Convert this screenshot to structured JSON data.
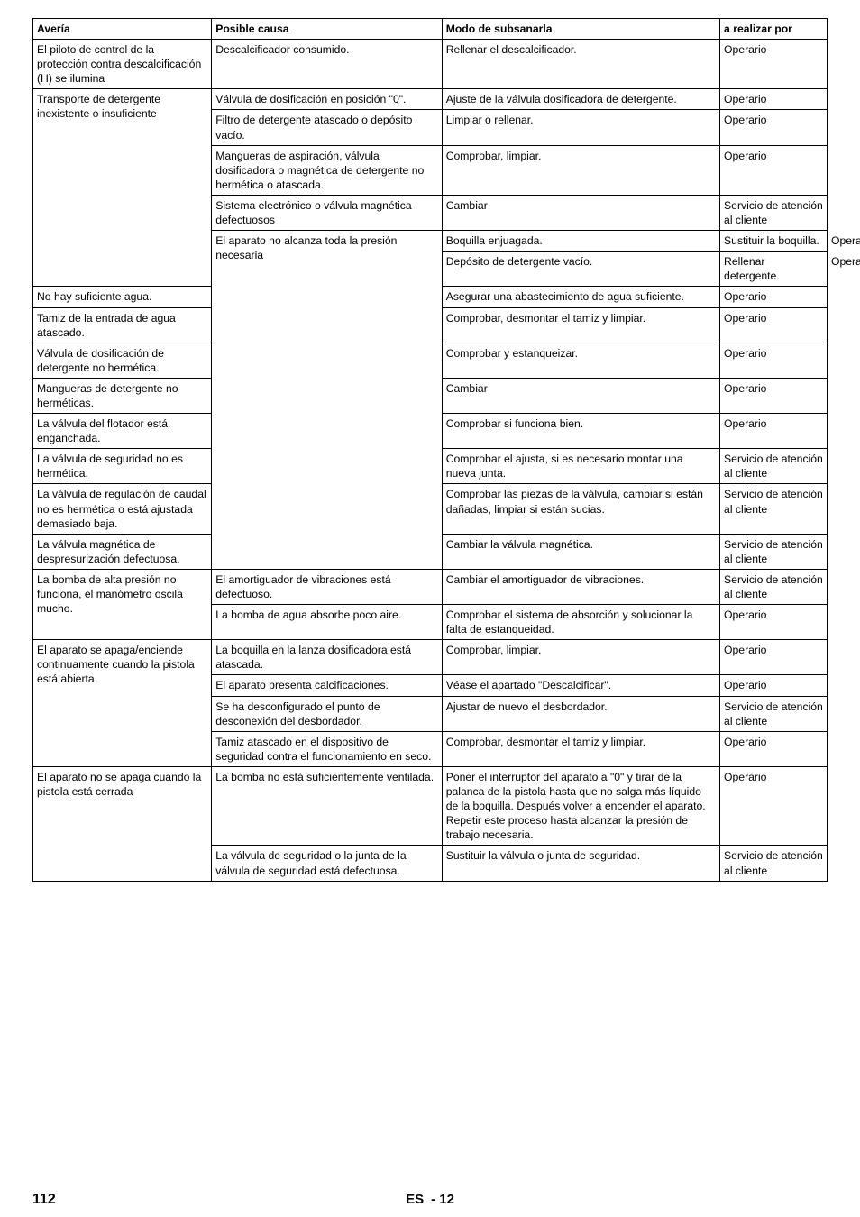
{
  "table": {
    "headers": [
      "Avería",
      "Posible causa",
      "Modo de subsanarla",
      "a realizar por"
    ],
    "rows": [
      {
        "averia": "El piloto de control de la protección contra descalcificación (H) se ilumina",
        "causa": "Descalcificador consumido.",
        "modo": "Rellenar el descalcificador.",
        "realizar": "Operario",
        "rs_a": 1
      },
      {
        "causa": "Válvula de dosificación en posición \"0\".",
        "modo": "Ajuste de la válvula dosificadora de detergente.",
        "realizar": "Operario",
        "rs_a": 6,
        "averia": "Transporte de detergente inexistente o insuficiente"
      },
      {
        "causa": "Filtro de detergente atascado o depósito vacío.",
        "modo": "Limpiar o rellenar.",
        "realizar": "Operario"
      },
      {
        "causa": "Mangueras de aspiración, válvula dosificadora o magnética de detergente no hermética o atascada.",
        "modo": "Comprobar, limpiar.",
        "realizar": "Operario"
      },
      {
        "causa": "Sistema electrónico o válvula magnética defectuosos",
        "modo": "Cambiar",
        "realizar": "Servicio de atención al cliente"
      },
      {
        "causa": "Mangueras de detergente no herméticas.",
        "modo": "Cambiar",
        "realizar": "Operario",
        "skip": true
      },
      {
        "causa": "Boquilla enjuagada.",
        "modo": "Sustituir la boquilla.",
        "realizar": "Operario",
        "rs_a": 12,
        "averia": "El aparato no alcanza toda la presión necesaria"
      },
      {
        "causa": "Depósito de detergente vacío.",
        "modo": "Rellenar detergente.",
        "realizar": "Operario"
      },
      {
        "causa": "No hay suficiente agua.",
        "modo": "Asegurar una abastecimiento de agua suficiente.",
        "realizar": "Operario"
      },
      {
        "causa": "Tamiz de la entrada de agua atascado.",
        "modo": "Comprobar, desmontar el tamiz y limpiar.",
        "realizar": "Operario"
      },
      {
        "causa": "Válvula de dosificación de detergente no hermética.",
        "modo": "Comprobar y estanqueizar.",
        "realizar": "Operario"
      },
      {
        "causa": "Mangueras de detergente no herméticas.",
        "modo": "Cambiar",
        "realizar": "Operario"
      },
      {
        "causa": "La válvula del flotador está enganchada.",
        "modo": "Comprobar si funciona bien.",
        "realizar": "Operario"
      },
      {
        "causa": "La válvula de seguridad no es hermética.",
        "modo": "Comprobar el ajusta, si es necesario montar una nueva junta.",
        "realizar": "Servicio de atención al cliente"
      },
      {
        "causa": "La válvula de regulación de caudal no es hermética o está ajustada demasiado baja.",
        "modo": "Comprobar las piezas de la válvula, cambiar si están dañadas, limpiar si están sucias.",
        "realizar": "Servicio de atención al cliente"
      },
      {
        "causa": "La válvula magnética de despresurización defectuosa.",
        "modo": "Cambiar la válvula magnética.",
        "realizar": "Servicio de atención al cliente"
      },
      {
        "causa": "El amortiguador de vibraciones está defectuoso.",
        "modo": "Cambiar el amortiguador de vibraciones.",
        "realizar": "Servicio de atención al cliente",
        "rs_a": 2,
        "averia": "La bomba de alta presión no funciona, el manómetro oscila mucho."
      },
      {
        "causa": "La bomba de agua absorbe poco aire.",
        "modo": "Comprobar el sistema de absorción y solucionar la falta de estanqueidad.",
        "realizar": "Operario"
      },
      {
        "causa": "La boquilla en la lanza dosificadora está atascada.",
        "modo": "Comprobar, limpiar.",
        "realizar": "Operario",
        "rs_a": 4,
        "averia": "El aparato se apaga/enciende continuamente cuando la pistola está abierta"
      },
      {
        "causa": "El aparato presenta calcificaciones.",
        "modo": "Véase el apartado \"Descalcificar\".",
        "realizar": "Operario"
      },
      {
        "causa": "Se ha desconfigurado el punto de desconexión del desbordador.",
        "modo": "Ajustar de nuevo el desbordador.",
        "realizar": "Servicio de atención al cliente"
      },
      {
        "causa": "Tamiz atascado en el dispositivo de seguridad contra el funcionamiento en seco.",
        "modo": "Comprobar, desmontar el tamiz y limpiar.",
        "realizar": "Operario"
      },
      {
        "causa": "La bomba no está suficientemente ventilada.",
        "modo": "Poner el interruptor del aparato a \"0\" y tirar de la palanca de la pistola hasta que no salga más líquido de la boquilla. Después volver a encender el aparato. Repetir este proceso hasta alcanzar la presión de trabajo necesaria.",
        "realizar": "Operario",
        "rs_a": 2,
        "averia": "El aparato no se apaga cuando la pistola está cerrada"
      },
      {
        "causa": "La válvula de seguridad o la junta de la válvula de seguridad está defectuosa.",
        "modo": "Sustituir la válvula o junta de seguridad.",
        "realizar": "Servicio de atención al cliente"
      }
    ]
  },
  "footer": {
    "page_number": "112",
    "lang": "ES",
    "sub": "- 12"
  }
}
